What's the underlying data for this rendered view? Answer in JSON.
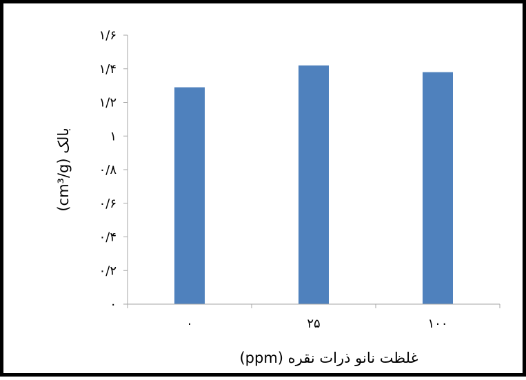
{
  "chart_data": {
    "type": "bar",
    "categories": [
      "۰",
      "۲۵",
      "۱۰۰"
    ],
    "values": [
      1.29,
      1.42,
      1.38
    ],
    "ylim": [
      0,
      1.6
    ],
    "y_ticks": [
      {
        "value": 0,
        "label": "۰"
      },
      {
        "value": 0.2,
        "label": "۰/۲"
      },
      {
        "value": 0.4,
        "label": "۰/۴"
      },
      {
        "value": 0.6,
        "label": "۰/۶"
      },
      {
        "value": 0.8,
        "label": "۰/۸"
      },
      {
        "value": 1.0,
        "label": "۱"
      },
      {
        "value": 1.2,
        "label": "۱/۲"
      },
      {
        "value": 1.4,
        "label": "۱/۴"
      },
      {
        "value": 1.6,
        "label": "۱/۶"
      }
    ],
    "xlabel": "غلظت نانو ذرات نقره (ppm)",
    "ylabel": "بالک (cm³/g)",
    "grid": false,
    "bar_color": "#4f81bd"
  }
}
